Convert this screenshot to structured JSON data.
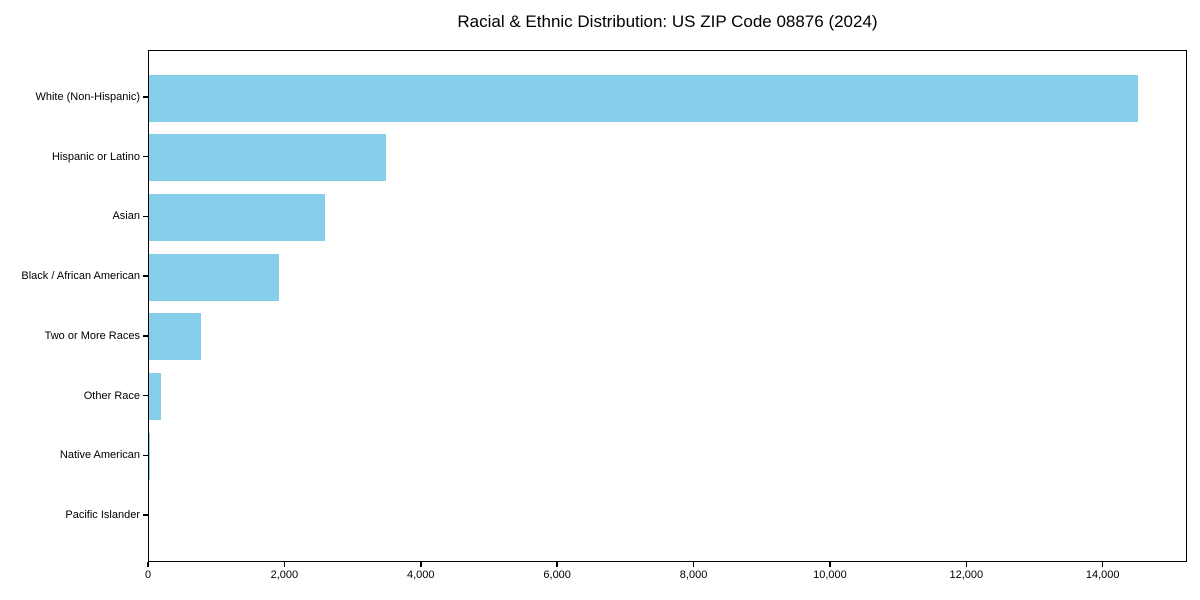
{
  "title": "Racial & Ethnic Distribution: US ZIP Code 08876 (2024)",
  "colors": {
    "bar": "#87CEEB",
    "axis": "#000000",
    "text": "#000000",
    "background": "#FFFFFF"
  },
  "chart_data": {
    "type": "bar",
    "orientation": "horizontal",
    "title": "Racial & Ethnic Distribution: US ZIP Code 08876 (2024)",
    "categories": [
      "White (Non-Hispanic)",
      "Hispanic or Latino",
      "Asian",
      "Black / African American",
      "Two or More Races",
      "Other Race",
      "Native American",
      "Pacific Islander"
    ],
    "values": [
      14500,
      3470,
      2580,
      1900,
      760,
      180,
      10,
      0
    ],
    "xlabel": "",
    "ylabel": "",
    "xlim": [
      0,
      15236
    ],
    "xticks": [
      0,
      2000,
      4000,
      6000,
      8000,
      10000,
      12000,
      14000
    ],
    "xtick_labels": [
      "0",
      "2,000",
      "4,000",
      "6,000",
      "8,000",
      "10,000",
      "12,000",
      "14,000"
    ],
    "bar_color": "#87CEEB",
    "grid": false,
    "legend": null
  }
}
